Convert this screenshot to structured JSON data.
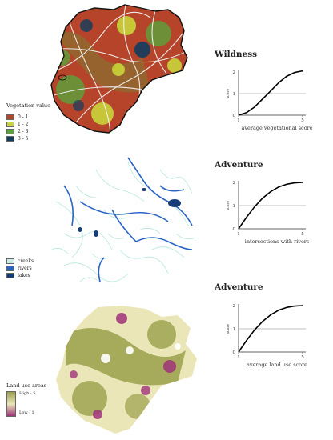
{
  "panels": [
    {
      "title": "Wildness",
      "map_legend": {
        "title": "Vegetation value",
        "items": [
          {
            "label": "0 - 1",
            "color": "#b5442a"
          },
          {
            "label": "1 - 2",
            "color": "#c9d43a"
          },
          {
            "label": "2 - 3",
            "color": "#5aa33c"
          },
          {
            "label": "3 - 5",
            "color": "#123d5e"
          }
        ]
      },
      "chart_data": {
        "type": "line",
        "x": [
          1,
          1.5,
          2,
          2.5,
          3,
          3.5,
          4,
          4.5,
          5
        ],
        "series": [
          {
            "values": [
              0.0,
              0.12,
              0.38,
              0.75,
              1.12,
              1.5,
              1.8,
              1.98,
              2.05
            ]
          }
        ],
        "reference_line_y": 1,
        "xlabel": "average vegetational score",
        "ylabel": "score",
        "xlim": [
          1,
          5
        ],
        "ylim": [
          0,
          2
        ],
        "x_ticks": [
          "1",
          "5"
        ],
        "y_ticks": [
          "0",
          "1",
          "2"
        ]
      }
    },
    {
      "title": "Adventure",
      "map_legend": {
        "title": "",
        "items": [
          {
            "label": "creeks",
            "color": "#c9ece6"
          },
          {
            "label": "rivers",
            "color": "#2a64c4"
          },
          {
            "label": "lakes",
            "color": "#163d78"
          }
        ]
      },
      "chart_data": {
        "type": "line",
        "x": [
          1,
          1.5,
          2,
          2.5,
          3,
          3.5,
          4,
          4.5,
          5
        ],
        "series": [
          {
            "values": [
              0.0,
              0.5,
              0.95,
              1.32,
              1.6,
              1.8,
              1.92,
              1.98,
              2.0
            ]
          }
        ],
        "reference_line_y": 1,
        "xlabel": "intersections with rivers",
        "ylabel": "score",
        "xlim": [
          1,
          5
        ],
        "ylim": [
          0,
          2
        ],
        "x_ticks": [
          "1",
          "5"
        ],
        "y_ticks": [
          "0",
          "1",
          "2"
        ]
      }
    },
    {
      "title": "Adventure",
      "map_legend": {
        "title": "Land use areas",
        "high_label": "High : 5",
        "low_label": "Low : 1",
        "high_color": "#9aa04a",
        "low_color": "#a0337a"
      },
      "chart_data": {
        "type": "line",
        "x": [
          1,
          1.5,
          2,
          2.5,
          3,
          3.5,
          4,
          4.5,
          5
        ],
        "series": [
          {
            "values": [
              0.0,
              0.5,
              0.95,
              1.32,
              1.6,
              1.8,
              1.92,
              1.98,
              2.0
            ]
          }
        ],
        "reference_line_y": 1,
        "xlabel": "average land use score",
        "ylabel": "score",
        "xlim": [
          1,
          5
        ],
        "ylim": [
          0,
          2
        ],
        "x_ticks": [
          "1",
          "5"
        ],
        "y_ticks": [
          "0",
          "1",
          "2"
        ]
      }
    }
  ]
}
